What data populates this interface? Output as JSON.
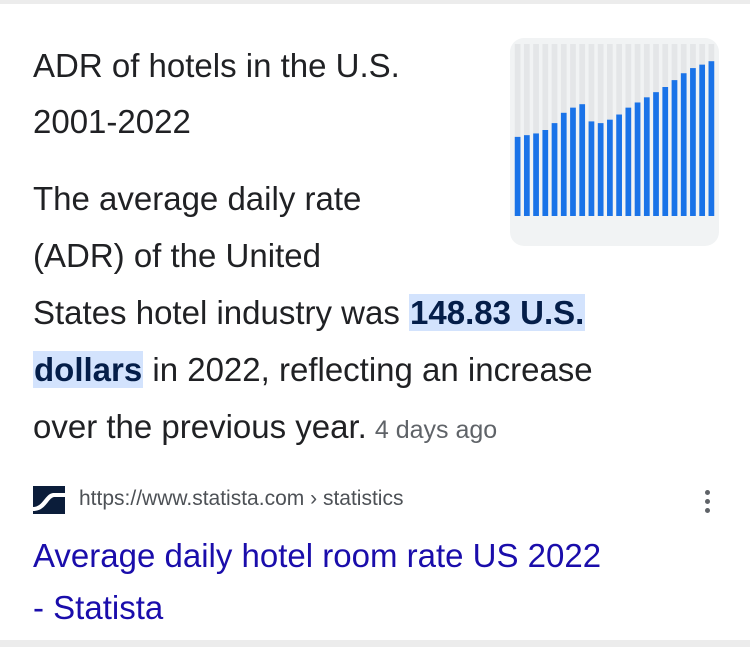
{
  "featured": {
    "title": "ADR of hotels in the U.S. 2001-2022",
    "title_line1": "ADR of hotels in the U.S.",
    "title_line2": "2001-2022",
    "snippet_line1": "The average daily rate",
    "snippet_line2": "(ADR) of the United",
    "snippet_line3_pre": "States hotel industry was ",
    "highlight_part1": "148.83 U.S.",
    "highlight_part2": "dollars",
    "snippet_line4_post": " in 2022, reflecting an increase",
    "snippet_line5": "over the previous year.",
    "date": "4 days ago",
    "highlight_color": "#d3e3fd"
  },
  "thumbnail": {
    "icon": "bar-chart-thumbnail",
    "bar_color": "#1a73e8",
    "background": "#f1f3f4",
    "bar_levels": [
      0.46,
      0.47,
      0.48,
      0.5,
      0.54,
      0.6,
      0.63,
      0.65,
      0.55,
      0.54,
      0.56,
      0.59,
      0.63,
      0.66,
      0.69,
      0.72,
      0.75,
      0.79,
      0.83,
      0.86,
      0.88,
      0.9
    ]
  },
  "source": {
    "favicon": "statista-logo-icon",
    "url": "https://www.statista.com",
    "path_separator": "›",
    "path": "statistics",
    "more_icon": "more-vert-icon"
  },
  "result": {
    "title_line1": "Average daily hotel room rate US 2022",
    "title_line2": "- Statista",
    "link_color": "#1a0dab"
  }
}
